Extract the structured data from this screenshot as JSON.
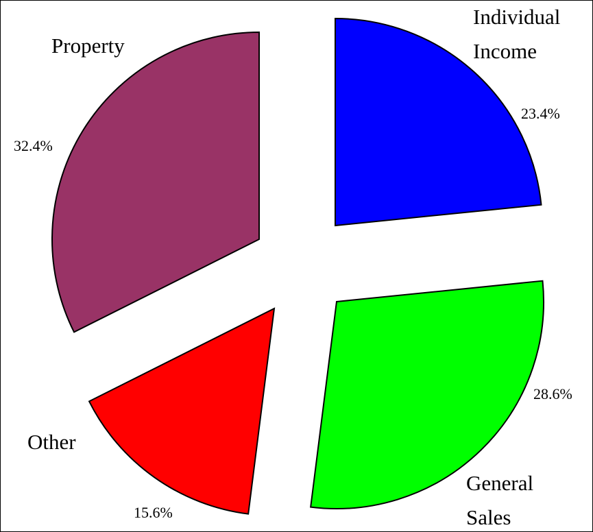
{
  "chart_data": {
    "type": "pie",
    "categories": [
      "Individual Income",
      "General Sales",
      "Other",
      "Property"
    ],
    "values": [
      23.4,
      28.6,
      15.6,
      32.4
    ],
    "value_labels": [
      "23.4%",
      "28.6%",
      "15.6%",
      "32.4%"
    ],
    "colors": [
      "#0000ff",
      "#00ff00",
      "#ff0000",
      "#993366"
    ]
  }
}
